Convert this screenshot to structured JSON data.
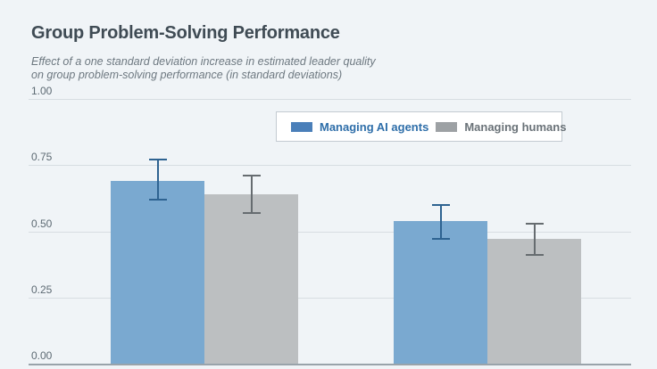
{
  "header": {
    "title": "Group Problem-Solving Performance",
    "subtitle_line1": "Effect of a one standard deviation increase in estimated leader quality",
    "subtitle_line2": "on group problem-solving performance (in standard deviations)"
  },
  "legend": {
    "items": [
      {
        "label": "Managing AI agents",
        "swatch_color": "#4a7fb9",
        "text_color": "#2e6ea9"
      },
      {
        "label": "Managing humans",
        "swatch_color": "#9da1a4",
        "text_color": "#6a7278"
      }
    ]
  },
  "chart_data": {
    "type": "bar",
    "categories": [
      "",
      ""
    ],
    "x_axis_labels_visible": false,
    "series": [
      {
        "name": "Managing AI agents",
        "color": "#7aa9d0",
        "error_color": "#2e6391",
        "values": [
          0.69,
          0.54
        ],
        "ci_low": [
          0.62,
          0.47
        ],
        "ci_high": [
          0.77,
          0.6
        ]
      },
      {
        "name": "Managing humans",
        "color": "#bcbfc1",
        "error_color": "#666c70",
        "values": [
          0.64,
          0.47
        ],
        "ci_low": [
          0.57,
          0.41
        ],
        "ci_high": [
          0.71,
          0.53
        ]
      }
    ],
    "title": "Group Problem-Solving Performance",
    "subtitle": "Effect of a one standard deviation increase in estimated leader quality on group problem-solving performance (in standard deviations)",
    "xlabel": "",
    "ylabel": "",
    "ylim": [
      0,
      1
    ],
    "yticks": [
      0,
      0.25,
      0.5,
      0.75,
      1.0
    ],
    "ytick_labels": [
      "0.00",
      "0.25",
      "0.50",
      "0.75",
      "1.00"
    ],
    "grid": true,
    "error_bars": true,
    "legend_position": "top-right-inside"
  },
  "colors": {
    "background": "#f0f4f7",
    "grid_line": "#d7dde2",
    "axis_baseline": "#99a3aa",
    "title_text": "#3f4b54",
    "subtitle_text": "#6d7880",
    "tick_text": "#5d6a73"
  }
}
